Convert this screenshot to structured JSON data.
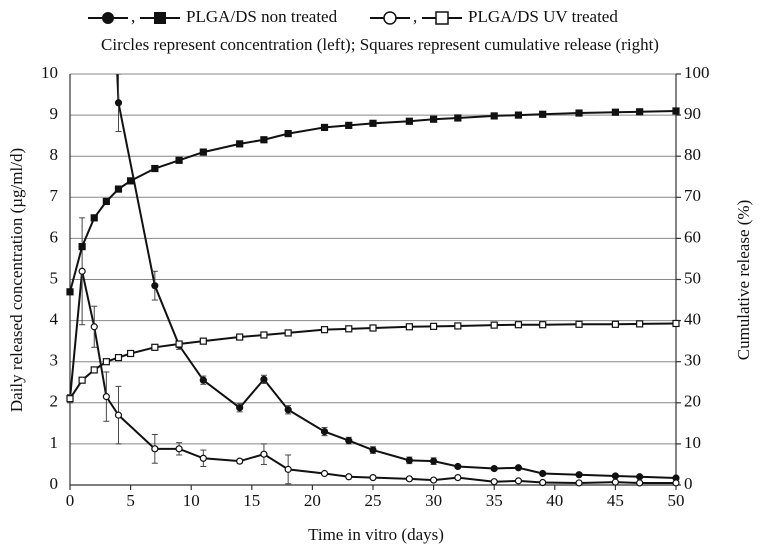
{
  "chart_data": {
    "type": "line",
    "subtitle": "Circles represent concentration (left); Squares represent cumulative release (right)",
    "xlabel": "Time in vitro (days)",
    "ylabel": "Daily released concentration (µg/ml/d)",
    "y2label": "Cumulative release (%)",
    "xlim": [
      0,
      50
    ],
    "xticks": [
      0,
      5,
      10,
      15,
      20,
      25,
      30,
      35,
      40,
      45,
      50
    ],
    "ylim": [
      0,
      10
    ],
    "yticks": [
      0,
      1,
      2,
      3,
      4,
      5,
      6,
      7,
      8,
      9,
      10
    ],
    "y2lim": [
      0,
      100
    ],
    "y2ticks": [
      0,
      10,
      20,
      30,
      40,
      50,
      60,
      70,
      80,
      90,
      100
    ],
    "grid": true,
    "series": [
      {
        "name": "PLGA/DS non treated",
        "color": "#111111",
        "marker": "circle",
        "filled": true,
        "x": [
          1,
          4,
          7,
          9,
          11,
          14,
          16,
          18,
          21,
          23,
          25,
          28,
          30,
          32,
          35,
          37,
          39,
          42,
          45,
          47,
          50
        ],
        "values": [
          30,
          9.3,
          4.85,
          3.4,
          2.55,
          1.88,
          2.57,
          1.83,
          1.3,
          1.08,
          0.85,
          0.6,
          0.58,
          0.45,
          0.4,
          0.42,
          0.28,
          0.25,
          0.22,
          0.2,
          0.17
        ],
        "errors": [
          0,
          0.7,
          0.35,
          0.1,
          0.1,
          0.1,
          0.1,
          0.1,
          0.1,
          0.08,
          0.08,
          0.08,
          0.08,
          0.03,
          0.03,
          0.03,
          0.03,
          0.03,
          0.03,
          0.03,
          0.03
        ]
      },
      {
        "name": "PLGA/DS UV treated",
        "color": "#111111",
        "marker": "circle",
        "filled": false,
        "x": [
          0,
          1,
          2,
          3,
          4,
          7,
          9,
          11,
          14,
          16,
          18,
          21,
          23,
          25,
          28,
          30,
          32,
          35,
          37,
          39,
          42,
          45,
          47,
          50
        ],
        "values": [
          2.1,
          5.2,
          3.85,
          2.15,
          1.7,
          0.88,
          0.88,
          0.65,
          0.58,
          0.75,
          0.38,
          0.28,
          0.2,
          0.18,
          0.15,
          0.12,
          0.18,
          0.08,
          0.1,
          0.06,
          0.05,
          0.07,
          0.05,
          0.05
        ],
        "errors": [
          0.1,
          1.3,
          0.5,
          0.6,
          0.7,
          0.35,
          0.15,
          0.2,
          0.05,
          0.25,
          0.35,
          0.03,
          0.03,
          0.03,
          0.03,
          0.03,
          0.03,
          0.03,
          0.03,
          0.03,
          0.03,
          0.03,
          0.03,
          0.03
        ]
      },
      {
        "color": "#111111",
        "marker": "square",
        "filled": true,
        "axis": "y2",
        "x": [
          0,
          1,
          2,
          3,
          4,
          5,
          7,
          9,
          11,
          14,
          16,
          18,
          21,
          23,
          25,
          28,
          30,
          32,
          35,
          37,
          39,
          42,
          45,
          47,
          50
        ],
        "values": [
          47,
          58,
          65,
          69,
          72,
          74,
          77,
          79,
          81,
          83,
          84,
          85.5,
          87,
          87.5,
          88,
          88.5,
          89,
          89.3,
          89.8,
          90,
          90.2,
          90.5,
          90.7,
          90.8,
          91
        ]
      },
      {
        "color": "#111111",
        "marker": "square",
        "filled": false,
        "axis": "y2",
        "x": [
          0,
          1,
          2,
          3,
          4,
          5,
          7,
          9,
          11,
          14,
          16,
          18,
          21,
          23,
          25,
          28,
          30,
          32,
          35,
          37,
          39,
          42,
          45,
          47,
          50
        ],
        "values": [
          21,
          25.5,
          28,
          30,
          31,
          32,
          33.5,
          34.3,
          35,
          36,
          36.5,
          37,
          37.8,
          38,
          38.2,
          38.5,
          38.6,
          38.7,
          38.9,
          39,
          39,
          39.1,
          39.1,
          39.2,
          39.3
        ]
      }
    ]
  }
}
